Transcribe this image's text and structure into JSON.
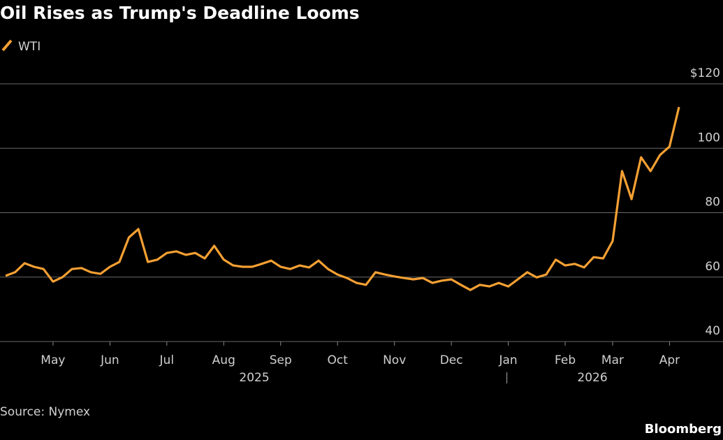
{
  "chart_data": {
    "type": "line",
    "title": "Oil Rises as Trump's Deadline Looms",
    "source": "Source: Nymex",
    "brand": "Bloomberg",
    "years": [
      "2025",
      "2026"
    ],
    "categories": [
      null,
      null,
      null,
      null,
      null,
      "May",
      null,
      null,
      null,
      null,
      null,
      "Jun",
      null,
      null,
      null,
      null,
      null,
      "Jul",
      null,
      null,
      null,
      null,
      null,
      "Aug",
      null,
      null,
      null,
      null,
      null,
      "Sep",
      null,
      null,
      null,
      null,
      null,
      "Oct",
      null,
      null,
      null,
      null,
      null,
      "Nov",
      null,
      null,
      null,
      null,
      null,
      "Dec",
      null,
      null,
      null,
      null,
      null,
      "Jan",
      null,
      null,
      null,
      null,
      null,
      "Feb",
      null,
      null,
      null,
      null,
      "Mar",
      null,
      null,
      null,
      null,
      null,
      "Apr",
      null
    ],
    "series": [
      {
        "name": "WTI",
        "color": "#f5a033",
        "values": [
          60.4,
          61.5,
          64.3,
          63.2,
          62.5,
          58.6,
          60.0,
          62.5,
          62.8,
          61.5,
          61.0,
          63.2,
          64.7,
          72.3,
          74.9,
          64.7,
          65.4,
          67.5,
          68.0,
          66.9,
          67.5,
          65.8,
          69.7,
          65.4,
          63.6,
          63.2,
          63.2,
          64.1,
          65.1,
          63.2,
          62.5,
          63.6,
          63.0,
          65.1,
          62.5,
          60.8,
          59.7,
          58.2,
          57.6,
          61.5,
          60.8,
          60.2,
          59.7,
          59.3,
          59.7,
          58.2,
          58.9,
          59.3,
          57.6,
          56.0,
          57.6,
          57.1,
          58.2,
          57.1,
          59.3,
          61.5,
          59.9,
          60.8,
          65.4,
          63.6,
          64.1,
          63.0,
          66.2,
          65.8,
          71.2,
          92.9,
          84.2,
          97.2,
          92.9,
          97.9,
          100.5,
          112.8
        ]
      }
    ],
    "ylim": [
      40,
      120
    ],
    "yticks": [
      40,
      60,
      80,
      100,
      {
        "value": 120,
        "label": "$120"
      }
    ],
    "grid": true
  }
}
